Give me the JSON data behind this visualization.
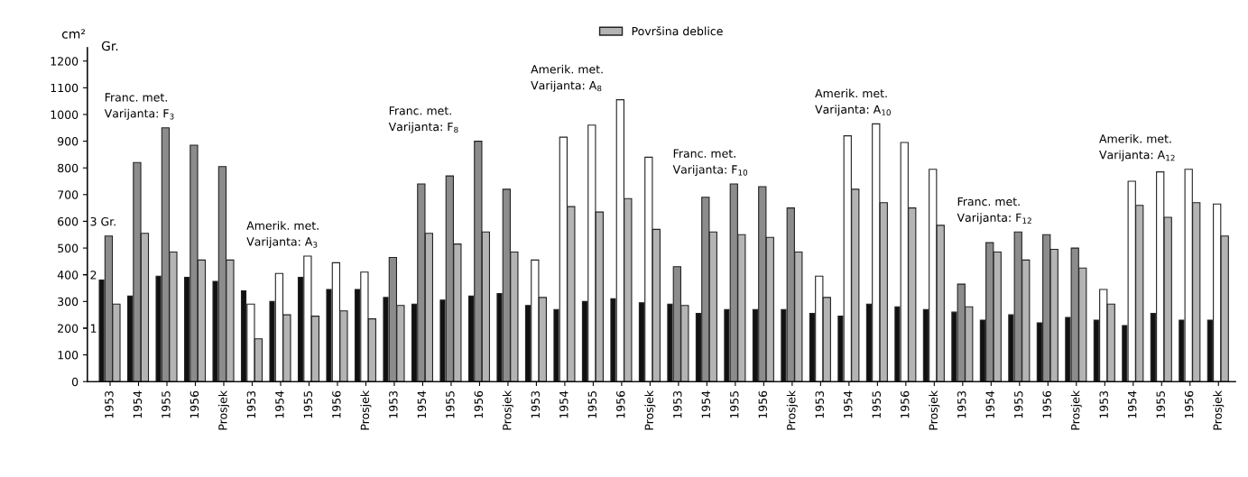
{
  "chart_data": {
    "type": "bar",
    "ylabel": "cm²",
    "y2label": "Gr.",
    "categories": [
      "1953",
      "1954",
      "1955",
      "1956",
      "Prosjek",
      "1953",
      "1954",
      "1955",
      "1956",
      "Prosjek",
      "1953",
      "1954",
      "1955",
      "1956",
      "Prosjek",
      "1953",
      "1954",
      "1955",
      "1956",
      "Prosjek",
      "1953",
      "1954",
      "1955",
      "1956",
      "Prosjek",
      "1953",
      "1954",
      "1955",
      "1956",
      "Prosjek",
      "1953",
      "1954",
      "1955",
      "1956",
      "Prosjek",
      "1953",
      "1954",
      "1955",
      "1956",
      "Prosjek"
    ],
    "series": [
      {
        "color": "#111111",
        "values": [
          380,
          320,
          395,
          390,
          375,
          340,
          300,
          390,
          345,
          345,
          315,
          290,
          305,
          320,
          330,
          285,
          270,
          300,
          310,
          295,
          290,
          255,
          270,
          270,
          270,
          255,
          245,
          290,
          280,
          270,
          260,
          230,
          250,
          220,
          240,
          230,
          210,
          255,
          230,
          230
        ]
      },
      {
        "color": "#8c8c8c",
        "colors": [
          "#8c8c8c",
          "#8c8c8c",
          "#8c8c8c",
          "#8c8c8c",
          "#8c8c8c",
          "#ffffff",
          "#ffffff",
          "#ffffff",
          "#ffffff",
          "#ffffff",
          "#8c8c8c",
          "#8c8c8c",
          "#8c8c8c",
          "#8c8c8c",
          "#8c8c8c",
          "#ffffff",
          "#ffffff",
          "#ffffff",
          "#ffffff",
          "#ffffff",
          "#8c8c8c",
          "#8c8c8c",
          "#8c8c8c",
          "#8c8c8c",
          "#8c8c8c",
          "#ffffff",
          "#ffffff",
          "#ffffff",
          "#ffffff",
          "#ffffff",
          "#8c8c8c",
          "#8c8c8c",
          "#8c8c8c",
          "#8c8c8c",
          "#8c8c8c",
          "#ffffff",
          "#ffffff",
          "#ffffff",
          "#ffffff",
          "#ffffff"
        ],
        "values": [
          545,
          820,
          950,
          885,
          805,
          290,
          405,
          470,
          445,
          410,
          465,
          740,
          770,
          900,
          720,
          455,
          915,
          960,
          1055,
          840,
          430,
          690,
          740,
          730,
          650,
          395,
          920,
          965,
          895,
          795,
          365,
          520,
          560,
          550,
          500,
          345,
          750,
          785,
          795,
          665
        ]
      },
      {
        "name": "Površina deblice",
        "color": "#b4b4b4",
        "values": [
          290,
          555,
          485,
          455,
          455,
          160,
          250,
          245,
          265,
          235,
          285,
          555,
          515,
          560,
          485,
          315,
          655,
          635,
          685,
          570,
          285,
          560,
          550,
          540,
          485,
          315,
          720,
          670,
          650,
          585,
          280,
          485,
          455,
          495,
          425,
          290,
          660,
          615,
          670,
          545
        ]
      }
    ],
    "ylim": [
      0,
      1250
    ],
    "yticks": [
      0,
      100,
      200,
      300,
      400,
      500,
      600,
      700,
      800,
      900,
      1000,
      1100,
      1200
    ],
    "y2lim": [
      0,
      6.25
    ],
    "y2ticks": [
      1,
      2,
      {
        "value": 3,
        "label": "3 Gr."
      }
    ],
    "annotations": [
      "Franc. met.\nVarijanta: F$_{3}$",
      "Amerik. met.\nVarijanta: A$_{3}$",
      "Franc. met.\nVarijanta: F$_{8}$",
      "Amerik. met.\nVarijanta: A$_{8}$",
      "Franc. met.\nVarijanta: F$_{10}$",
      "Amerik. met.\nVarijanta: A$_{10}$",
      "Franc. met.\nVarijanta: F$_{12}$",
      "Amerik. met.\nVarijanta: A$_{12}$"
    ],
    "legend": "top",
    "grid": false
  }
}
